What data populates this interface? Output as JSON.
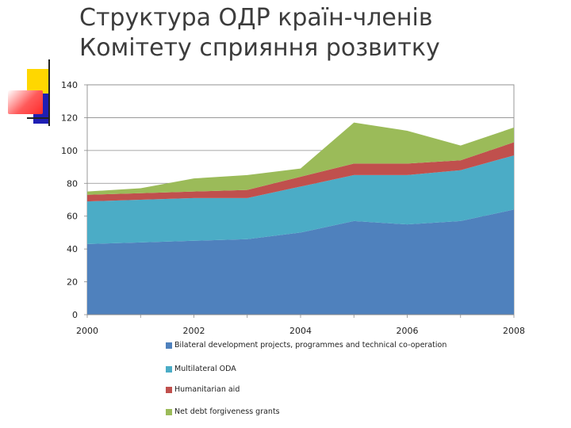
{
  "title": {
    "line1": "Структура ОДР країн-членів",
    "line2": "Комітету сприяння розвитку"
  },
  "chart_data": {
    "type": "area",
    "stacked": true,
    "x": [
      2000,
      2001,
      2002,
      2003,
      2004,
      2005,
      2006,
      2007,
      2008
    ],
    "x_tick_labels": [
      "2000",
      "2002",
      "2004",
      "2006",
      "2008"
    ],
    "ylim": [
      0,
      140
    ],
    "y_ticks": [
      0,
      20,
      40,
      60,
      80,
      100,
      120,
      140
    ],
    "grid": "horizontal",
    "legend_placement": "bottom",
    "series": [
      {
        "name": "Bilateral development projects, programmes and technical co-operation",
        "color": "#4f81bd",
        "values": [
          43,
          44,
          45,
          46,
          50,
          57,
          55,
          57,
          64
        ]
      },
      {
        "name": "Multilateral ODA",
        "color": "#4bacc6",
        "values": [
          26,
          26,
          26,
          25,
          28,
          28,
          30,
          31,
          33
        ]
      },
      {
        "name": "Humanitarian aid",
        "color": "#c0504d",
        "values": [
          4,
          4,
          4,
          5,
          6,
          7,
          7,
          6,
          8
        ]
      },
      {
        "name": "Net debt forgiveness grants",
        "color": "#9bbb59",
        "values": [
          2,
          3,
          8,
          9,
          5,
          25,
          20,
          9,
          9
        ]
      }
    ]
  }
}
